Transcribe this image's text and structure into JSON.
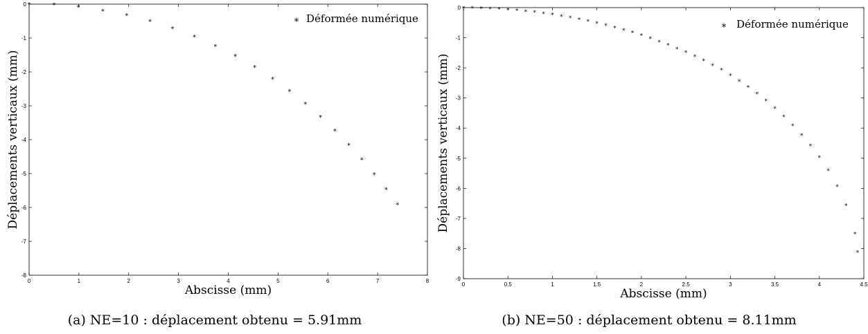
{
  "chart_data": [
    {
      "type": "scatter",
      "caption": "(a) NE=10 : déplacement obtenu = 5.91mm",
      "xlabel": "Abscisse (mm)",
      "ylabel": "Déplacements verticaux (mm)",
      "xlim": [
        0,
        8
      ],
      "ylim": [
        -8,
        0
      ],
      "xticks": [
        "0",
        "1",
        "2",
        "3",
        "4",
        "5",
        "6",
        "7",
        "8"
      ],
      "yticks": [
        "0",
        "-1",
        "-2",
        "-3",
        "-4",
        "-5",
        "-6",
        "-7",
        "-8"
      ],
      "legend": {
        "label": "Déformée numérique",
        "placement": "top-right",
        "marker": "*"
      },
      "series": [
        {
          "name": "Déformée numérique",
          "x": [
            0,
            0.5,
            0.99,
            1.48,
            1.96,
            2.43,
            2.88,
            3.32,
            3.74,
            4.14,
            4.53,
            4.89,
            5.23,
            5.55,
            5.85,
            6.14,
            6.42,
            6.68,
            6.93,
            7.17,
            7.4
          ],
          "y": [
            0,
            -0.01,
            -0.08,
            -0.19,
            -0.33,
            -0.5,
            -0.71,
            -0.96,
            -1.23,
            -1.53,
            -1.86,
            -2.2,
            -2.56,
            -2.94,
            -3.33,
            -3.73,
            -4.15,
            -4.58,
            -5.02,
            -5.46,
            -5.91
          ]
        }
      ]
    },
    {
      "type": "scatter",
      "caption": "(b) NE=50 : déplacement obtenu = 8.11mm",
      "xlabel": "Abscisse (mm)",
      "ylabel": "Déplacements verticaux (mm)",
      "xlim": [
        0,
        4.5
      ],
      "ylim": [
        -9,
        0
      ],
      "xticks": [
        "0",
        "0.5",
        "1",
        "1.5",
        "2",
        "2.5",
        "3",
        "3.5",
        "4",
        "4.5"
      ],
      "yticks": [
        "0",
        "-1",
        "-2",
        "-3",
        "-4",
        "-5",
        "-6",
        "-7",
        "-8",
        "-9"
      ],
      "legend": {
        "label": "Déformée numérique",
        "placement": "top-right",
        "marker": "*"
      },
      "series": [
        {
          "name": "Déformée numérique",
          "x": [
            0.0,
            0.1,
            0.2,
            0.3,
            0.4,
            0.5,
            0.6,
            0.7,
            0.8,
            0.9,
            1.0,
            1.1,
            1.2,
            1.3,
            1.4,
            1.5,
            1.6,
            1.7,
            1.8,
            1.9,
            2.0,
            2.1,
            2.2,
            2.3,
            2.4,
            2.5,
            2.6,
            2.7,
            2.8,
            2.9,
            3.0,
            3.1,
            3.2,
            3.3,
            3.4,
            3.5,
            3.6,
            3.7,
            3.8,
            3.9,
            4.0,
            4.1,
            4.2,
            4.3,
            4.4,
            4.43
          ],
          "y": [
            0.0,
            0.0,
            -0.01,
            -0.02,
            -0.04,
            -0.06,
            -0.08,
            -0.11,
            -0.14,
            -0.18,
            -0.22,
            -0.27,
            -0.32,
            -0.38,
            -0.44,
            -0.5,
            -0.57,
            -0.65,
            -0.73,
            -0.82,
            -0.91,
            -1.01,
            -1.12,
            -1.23,
            -1.35,
            -1.47,
            -1.61,
            -1.75,
            -1.9,
            -2.06,
            -2.24,
            -2.43,
            -2.63,
            -2.85,
            -3.08,
            -3.33,
            -3.6,
            -3.9,
            -4.22,
            -4.57,
            -4.96,
            -5.4,
            -5.92,
            -6.55,
            -7.5,
            -8.11
          ]
        }
      ]
    }
  ]
}
